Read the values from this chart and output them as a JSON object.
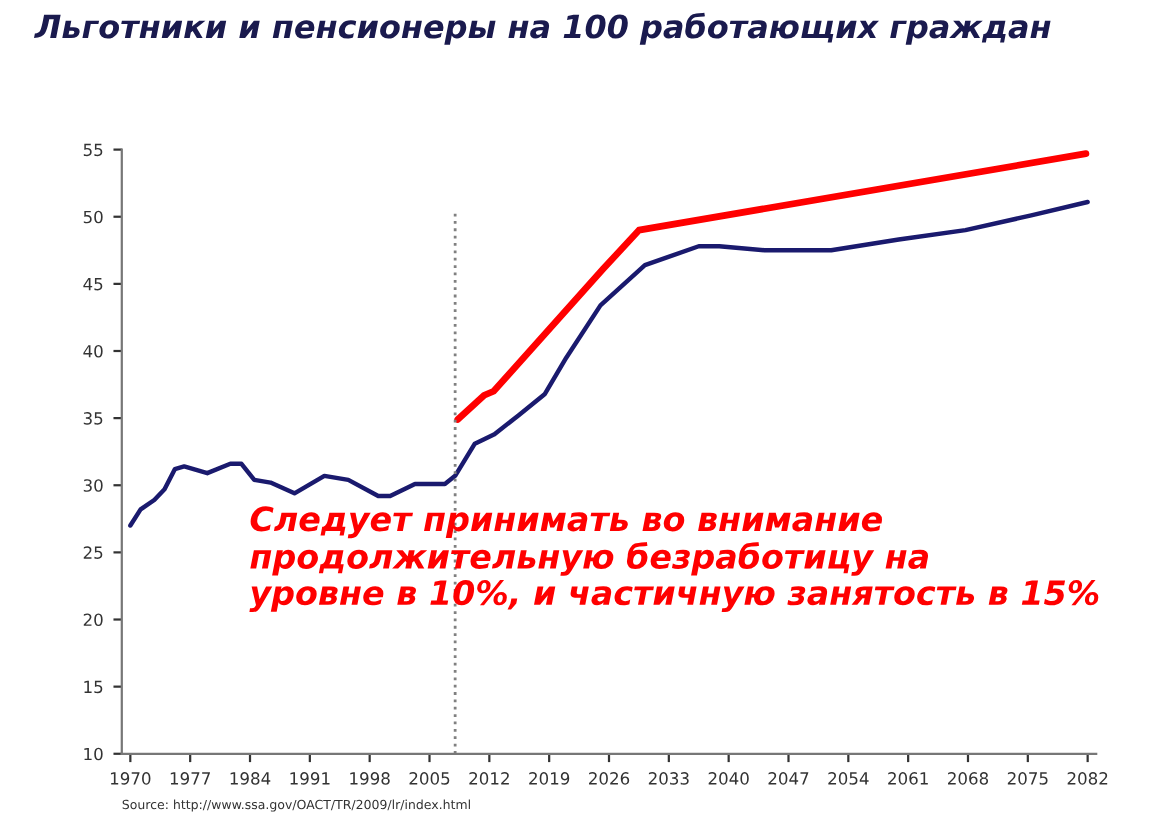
{
  "chart_data": {
    "type": "line",
    "title": "Льготники и пенсионеры на 100 работающих граждан",
    "series": [
      {
        "color": "#1a1a6e",
        "x": [
          1970,
          1971.2,
          1972.8,
          1974,
          1975.2,
          1976.3,
          1979,
          1981.7,
          1983,
          1984.5,
          1986.4,
          1989.2,
          1992.7,
          1995.5,
          1999,
          2000.4,
          2003.3,
          2006.8,
          2008,
          2010.3,
          2012.6,
          2015.4,
          2018.5,
          2021,
          2025,
          2030.2,
          2036.5,
          2038.9,
          2044.2,
          2052,
          2059.9,
          2067.7,
          2075.4,
          2082
        ],
        "values": [
          27.0,
          28.2,
          28.9,
          29.7,
          31.2,
          31.4,
          30.9,
          31.6,
          31.6,
          30.4,
          30.2,
          29.4,
          30.7,
          30.4,
          29.2,
          29.2,
          30.1,
          30.1,
          30.7,
          33.1,
          33.8,
          35.2,
          36.8,
          39.5,
          43.4,
          46.4,
          47.8,
          47.8,
          47.5,
          47.5,
          48.3,
          49.0,
          50.1,
          51.1
        ]
      },
      {
        "color": "#ff0000",
        "x": [
          2008.3,
          2011.4,
          2012.5,
          2025.3,
          2029.5,
          2081.8
        ],
        "values": [
          34.9,
          36.7,
          37.0,
          46.1,
          49.0,
          54.7
        ]
      }
    ],
    "xlim": [
      1969,
      2083
    ],
    "xticks": [
      1970,
      1977,
      1984,
      1991,
      1998,
      2005,
      2012,
      2019,
      2026,
      2033,
      2040,
      2047,
      2054,
      2061,
      2068,
      2075,
      2082
    ],
    "ylim": [
      10,
      55
    ],
    "yticks": [
      10,
      15,
      20,
      25,
      30,
      35,
      40,
      45,
      50,
      55
    ],
    "grid": false,
    "legend": false,
    "marker": "none",
    "line_style": "solid",
    "ref_lines": [
      {
        "axis": "x",
        "value": 2008,
        "color": "#808080",
        "line_style": "dotted"
      }
    ],
    "annotations": [
      "Следует принимать во внимание\nпродолжительную безработицу на\nуровне в 10%, и частичную занятость в 15%",
      "Source: http://www.ssa.gov/OACT/TR/2009/lr/index.html"
    ]
  }
}
